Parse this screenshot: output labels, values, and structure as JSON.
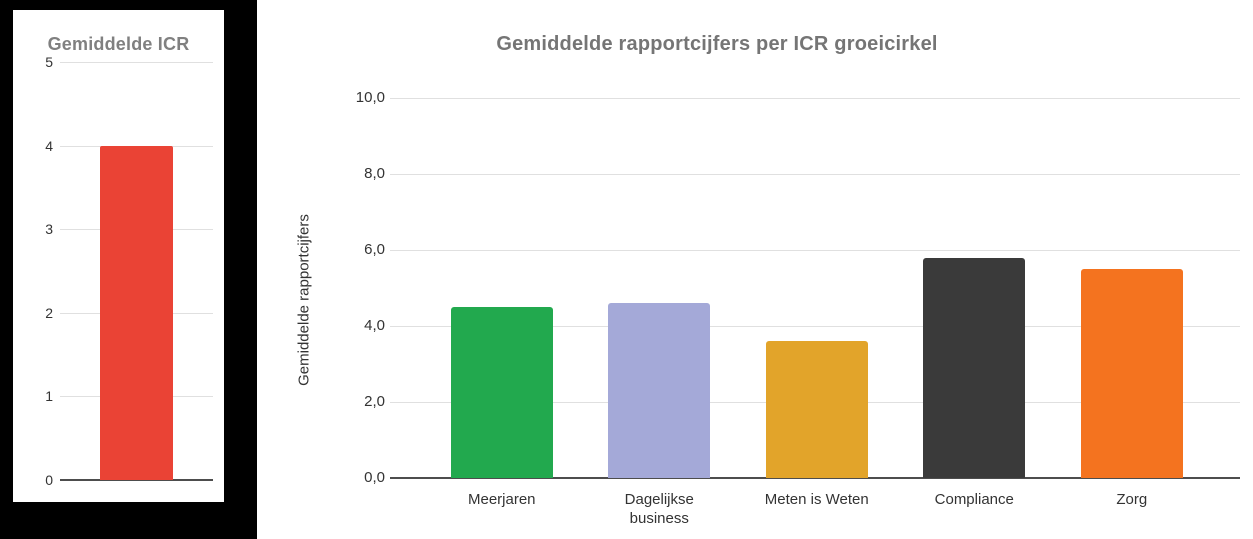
{
  "page": {
    "background": "#ffffff",
    "left_panel_background": "#000000",
    "card_background": "#ffffff"
  },
  "styles": {
    "gridline_color": "#e0e0e0",
    "axis_line_color": "#4d4d4d",
    "tick_label_color": "#333333",
    "category_label_color": "#333333"
  },
  "chart_data": [
    {
      "type": "bar",
      "title": "Gemiddelde ICR",
      "title_color": "#808080",
      "categories": [
        ""
      ],
      "values": [
        4
      ],
      "bar_colors": [
        "#EA4335"
      ],
      "xlabel": "",
      "ylabel": "",
      "ylim": [
        0,
        5
      ],
      "ytick_values": [
        0,
        1,
        2,
        3,
        4,
        5
      ],
      "ytick_labels": [
        "0",
        "1",
        "2",
        "3",
        "4",
        "5"
      ],
      "grid": true,
      "legend": "none"
    },
    {
      "type": "bar",
      "title": "Gemiddelde rapportcijfers per ICR groeicirkel",
      "title_color": "#757575",
      "categories": [
        "Meerjaren",
        "Dagelijkse business",
        "Meten is Weten",
        "Compliance",
        "Zorg"
      ],
      "values": [
        4.5,
        4.6,
        3.6,
        5.8,
        5.5
      ],
      "bar_colors": [
        "#22A94E",
        "#A4A9D8",
        "#E2A42A",
        "#3A3A3A",
        "#F4731F"
      ],
      "xlabel": "",
      "ylabel": "Gemiddelde rapportcijfers",
      "ylim": [
        0,
        10
      ],
      "ytick_values": [
        0,
        2,
        4,
        6,
        8,
        10
      ],
      "ytick_labels": [
        "0,0",
        "2,0",
        "4,0",
        "6,0",
        "8,0",
        "10,0"
      ],
      "grid": true,
      "legend": "none"
    }
  ]
}
